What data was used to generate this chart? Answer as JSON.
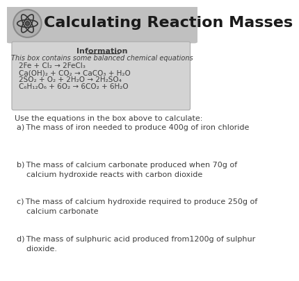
{
  "title": "Calculating Reaction Masses",
  "header_bg": "#c0c0c0",
  "page_bg": "#ffffff",
  "info_box_bg": "#d3d3d3",
  "info_title": "Information",
  "info_subtitle": "This box contains some balanced chemical equations",
  "equations": [
    "2Fe + Cl₂ → 2FeCl₃",
    "Ca(OH)₂ + CO₂ → CaCO₃ + H₂O",
    "2SO₂ + O₂ + 2H₂O → 2H₂SO₄",
    "C₆H₁₂O₆ + 6O₂ → 6CO₂ + 6H₂O"
  ],
  "intro_text": "Use the equations in the box above to calculate:",
  "questions": [
    "a) The mass of iron needed to produce 400g of iron chloride",
    "b) The mass of calcium carbonate produced when 70g of\n    calcium hydroxide reacts with carbon dioxide",
    "c) The mass of calcium hydroxide required to produce 250g of\n    calcium carbonate",
    "d) The mass of sulphuric acid produced from1200g of sulphur\n    dioxide."
  ],
  "text_color": "#3d3d3d",
  "title_text_color": "#1a1a1a"
}
